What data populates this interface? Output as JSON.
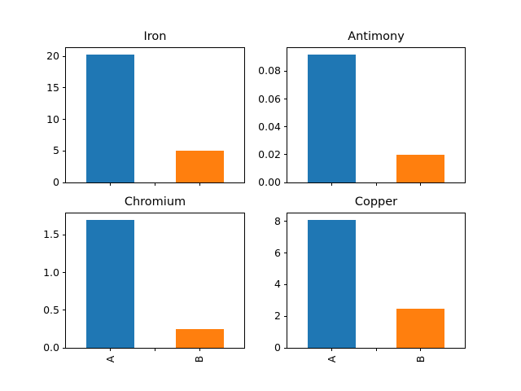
{
  "figure": {
    "background": "#ffffff",
    "bar_colors": [
      "#1f77b4",
      "#ff7f0e"
    ],
    "spine_color": "#000000",
    "text_color": "#000000"
  },
  "chart_data": [
    {
      "type": "bar",
      "title": "Iron",
      "categories": [
        "A",
        "B"
      ],
      "values": [
        20.3,
        5.0
      ],
      "yticks": [
        0,
        5,
        10,
        15,
        20
      ],
      "ytick_labels": [
        "0",
        "5",
        "10",
        "15",
        "20"
      ],
      "ylim": [
        0,
        21.3
      ],
      "xlabel": "",
      "ylabel": "",
      "grid": false,
      "legend": "none",
      "show_xticklabels": false
    },
    {
      "type": "bar",
      "title": "Antimony",
      "categories": [
        "A",
        "B"
      ],
      "values": [
        0.092,
        0.02
      ],
      "yticks": [
        0,
        0.02,
        0.04,
        0.06,
        0.08
      ],
      "ytick_labels": [
        "0.00",
        "0.02",
        "0.04",
        "0.06",
        "0.08"
      ],
      "ylim": [
        0,
        0.0966
      ],
      "xlabel": "",
      "ylabel": "",
      "grid": false,
      "legend": "none",
      "show_xticklabels": false
    },
    {
      "type": "bar",
      "title": "Chromium",
      "categories": [
        "A",
        "B"
      ],
      "values": [
        1.7,
        0.25
      ],
      "yticks": [
        0,
        0.5,
        1.0,
        1.5
      ],
      "ytick_labels": [
        "0.0",
        "0.5",
        "1.0",
        "1.5"
      ],
      "ylim": [
        0,
        1.785
      ],
      "xlabel": "",
      "ylabel": "",
      "grid": false,
      "legend": "none",
      "show_xticklabels": true
    },
    {
      "type": "bar",
      "title": "Copper",
      "categories": [
        "A",
        "B"
      ],
      "values": [
        8.1,
        2.5
      ],
      "yticks": [
        0,
        2,
        4,
        6,
        8
      ],
      "ytick_labels": [
        "0",
        "2",
        "4",
        "6",
        "8"
      ],
      "ylim": [
        0,
        8.505
      ],
      "xlabel": "",
      "ylabel": "",
      "grid": false,
      "legend": "none",
      "show_xticklabels": true
    }
  ]
}
